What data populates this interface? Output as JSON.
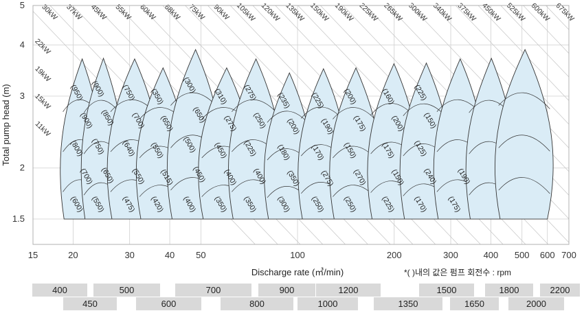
{
  "chart_data": {
    "type": "area",
    "xlabel": "Discharge rate (㎥/min)",
    "ylabel": "Total pump head (m)",
    "x_scale": "log",
    "y_scale": "log",
    "xlim": [
      15,
      700
    ],
    "ylim": [
      1.3,
      5
    ],
    "x_ticks": [
      "15",
      "20",
      "30",
      "40",
      "50",
      "100",
      "200",
      "300",
      "400",
      "500",
      "600",
      "700"
    ],
    "y_ticks": [
      "1.5",
      "2",
      "3",
      "4",
      "5"
    ],
    "grid": true,
    "note": "*( )내의 값은 펌프 회전수 : rpm",
    "power_lines": [
      "11kW",
      "15kW",
      "19kW",
      "22kW",
      "30kW",
      "37kW",
      "45kW",
      "55kW",
      "60kW",
      "68kW",
      "75kW",
      "90kW",
      "105kW",
      "120kW",
      "135kW",
      "150kW",
      "190kW",
      "225kW",
      "265kW",
      "300kW",
      "340kW",
      "375kW",
      "450kW",
      "525kW",
      "600kW",
      "675kW"
    ],
    "speed_labels": [
      "(600)",
      "(700)",
      "(800)",
      "(900)",
      "(950)",
      "(550)",
      "(650)",
      "(750)",
      "(850)",
      "(900)",
      "(475)",
      "(550)",
      "(640)",
      "(700)",
      "(750)",
      "(420)",
      "(515)",
      "(550)",
      "(650)",
      "(350)",
      "(400)",
      "(450)",
      "(500)",
      "(650)",
      "(300)",
      "(350)",
      "(400)",
      "(450)",
      "(275)",
      "(310)",
      "(350)",
      "(400)",
      "(225)",
      "(250)",
      "(275)",
      "(300)",
      "(350)",
      "(180)",
      "(200)",
      "(235)",
      "(250)",
      "(275)",
      "(170)",
      "(190)",
      "(225)",
      "(250)",
      "(270)",
      "(150)",
      "(175)",
      "(200)",
      "(225)",
      "(150)",
      "(175)",
      "(200)",
      "(160)",
      "(170)",
      "(240)",
      "(125)",
      "(150)",
      "(225)",
      "(175)",
      "(190)"
    ],
    "pump_models": [
      {
        "name": "400",
        "flow": [
          18.5,
          24
        ],
        "head": [
          1.5,
          3.7
        ]
      },
      {
        "name": "450",
        "flow": [
          21.5,
          28
        ],
        "head": [
          1.5,
          3.8
        ]
      },
      {
        "name": "500",
        "flow": [
          26,
          36
        ],
        "head": [
          1.5,
          3.7
        ]
      },
      {
        "name": "600",
        "flow": [
          32,
          44
        ],
        "head": [
          1.5,
          3.6
        ]
      },
      {
        "name": "700",
        "flow": [
          40,
          56
        ],
        "head": [
          1.5,
          3.9
        ]
      },
      {
        "name": "800",
        "flow": [
          50,
          70
        ],
        "head": [
          1.5,
          3.6
        ]
      },
      {
        "name": "900",
        "flow": [
          62,
          86
        ],
        "head": [
          1.5,
          3.7
        ]
      },
      {
        "name": "1000",
        "flow": [
          80,
          108
        ],
        "head": [
          1.5,
          3.5
        ]
      },
      {
        "name": "1200",
        "flow": [
          102,
          138
        ],
        "head": [
          1.5,
          3.5
        ]
      },
      {
        "name": "1350",
        "flow": [
          128,
          175
        ],
        "head": [
          1.5,
          3.6
        ]
      },
      {
        "name": "1500",
        "flow": [
          168,
          230
        ],
        "head": [
          1.5,
          3.6
        ]
      },
      {
        "name": "1650",
        "flow": [
          212,
          290
        ],
        "head": [
          1.5,
          3.7
        ]
      },
      {
        "name": "1800",
        "flow": [
          270,
          370
        ],
        "head": [
          1.5,
          3.7
        ]
      },
      {
        "name": "2000",
        "flow": [
          340,
          460
        ],
        "head": [
          1.5,
          3.8
        ]
      },
      {
        "name": "2200",
        "flow": [
          420,
          600
        ],
        "head": [
          1.5,
          3.9
        ]
      }
    ]
  },
  "axis": {
    "x_title": "Discharge rate (㎥/min)",
    "y_title": "Total pump head (m)",
    "note": "*( )내의 값은 펌프 회전수 : rpm"
  },
  "legend_rows": {
    "top": [
      "400",
      "500",
      "700",
      "900",
      "1200",
      "1500",
      "1800",
      "2200"
    ],
    "bottom": [
      "450",
      "600",
      "800",
      "1000",
      "1350",
      "1650",
      "2000"
    ]
  },
  "colors": {
    "fill": "#daecf6",
    "grid": "#cfcfcf",
    "box": "#d9d9d9",
    "outline": "#333333"
  }
}
